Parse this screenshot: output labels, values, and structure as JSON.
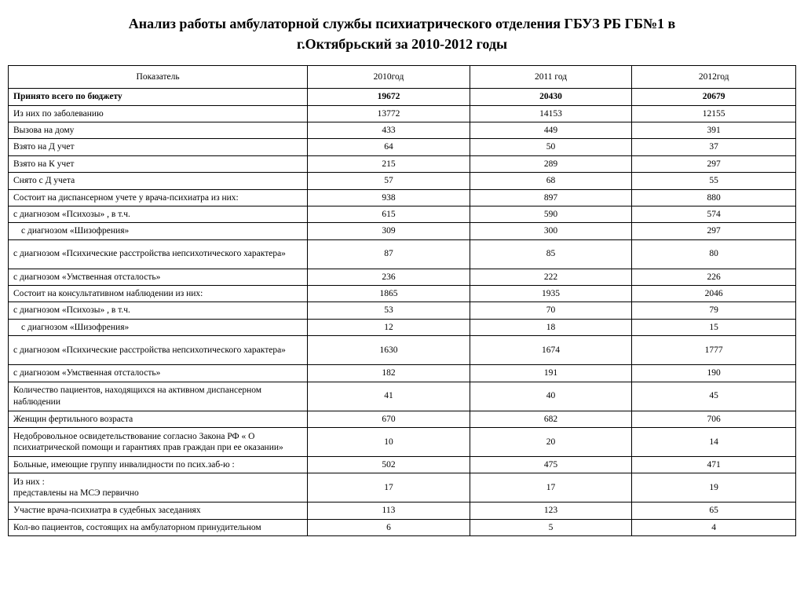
{
  "title_line1": "Анализ работы амбулаторной службы  психиатрического отделения ГБУЗ РБ ГБ№1 в",
  "title_line2": "г.Октябрьский  за 2010-2012 годы",
  "table": {
    "columns": [
      "Показатель",
      "2010год",
      "2011 год",
      "2012год"
    ],
    "column_widths_pct": [
      38,
      20.6,
      20.6,
      20.8
    ],
    "border_color": "#000000",
    "background_color": "#ffffff",
    "text_color": "#000000",
    "header_fontsize": 11.5,
    "body_fontsize": 11.5,
    "rows": [
      {
        "label": "Принято всего по бюджету",
        "v": [
          "19672",
          "20430",
          "20679"
        ],
        "bold": true
      },
      {
        "label": "Из них по заболеванию",
        "v": [
          "13772",
          "14153",
          "12155"
        ]
      },
      {
        "label": "Вызова на дому",
        "v": [
          "433",
          "449",
          "391"
        ]
      },
      {
        "label": "Взято на Д учет",
        "v": [
          "64",
          "50",
          "37"
        ]
      },
      {
        "label": "Взято на К учет",
        "v": [
          "215",
          "289",
          "297"
        ]
      },
      {
        "label": "Снято с Д учета",
        "v": [
          "57",
          "68",
          "55"
        ]
      },
      {
        "label": "Состоит на диспансерном учете у врача-психиатра из них:",
        "v": [
          "938",
          "897",
          "880"
        ]
      },
      {
        "label": "с диагнозом «Психозы» , в т.ч.",
        "v": [
          "615",
          "590",
          "574"
        ]
      },
      {
        "label": "с диагнозом «Шизофрения»",
        "v": [
          "309",
          "300",
          "297"
        ],
        "indent": 1
      },
      {
        "label": "с диагнозом «Психические расстройства непсихотического характера»",
        "v": [
          "87",
          "85",
          "80"
        ],
        "multiline": true
      },
      {
        "label": "с диагнозом «Умственная отсталость»",
        "v": [
          "236",
          "222",
          "226"
        ]
      },
      {
        "label": "Состоит на консультативном наблюдении  из них:",
        "v": [
          "1865",
          "1935",
          "2046"
        ]
      },
      {
        "label": "с диагнозом «Психозы» , в т.ч.",
        "v": [
          "53",
          "70",
          "79"
        ]
      },
      {
        "label": "с диагнозом «Шизофрения»",
        "v": [
          "12",
          "18",
          "15"
        ],
        "indent": 1
      },
      {
        "label": "с диагнозом «Психические расстройства непсихотического характера»",
        "v": [
          "1630",
          "1674",
          "1777"
        ],
        "multiline": true
      },
      {
        "label": "с диагнозом «Умственная отсталость»",
        "v": [
          "182",
          "191",
          "190"
        ]
      },
      {
        "label": "Количество пациентов, находящихся на активном диспансерном наблюдении",
        "v": [
          "41",
          "40",
          "45"
        ],
        "multiline": true
      },
      {
        "label": "Женщин фертильного возраста",
        "v": [
          "670",
          "682",
          "706"
        ]
      },
      {
        "label": "Недобровольное освидетельствование согласно Закона РФ « О психиатрической помощи и гарантиях прав граждан при ее оказании»",
        "v": [
          "10",
          "20",
          "14"
        ],
        "multiline": true
      },
      {
        "label": "Больные, имеющие группу инвалидности по псих.заб-ю :",
        "v": [
          "502",
          "475",
          "471"
        ]
      },
      {
        "label": "Из них :\nпредставлены на МСЭ первично",
        "v": [
          "17",
          "17",
          "19"
        ],
        "multiline": true
      },
      {
        "label": "Участие врача-психиатра в судебных заседаниях",
        "v": [
          "113",
          "123",
          "65"
        ]
      },
      {
        "label": "Кол-во пациентов, состоящих на  амбулаторном принудительном",
        "v": [
          "6",
          "5",
          "4"
        ]
      }
    ]
  }
}
